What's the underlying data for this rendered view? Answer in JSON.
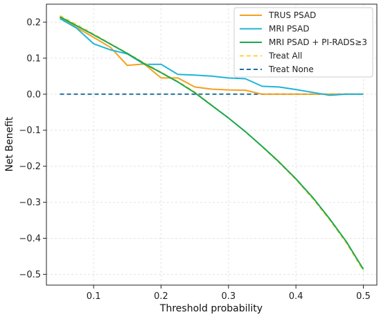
{
  "chart_data": {
    "type": "line",
    "title": "",
    "xlabel": "Threshold probability",
    "ylabel": "Net Benefit",
    "xlim": [
      0.03,
      0.52
    ],
    "ylim": [
      -0.53,
      0.25
    ],
    "xticks": [
      0.1,
      0.2,
      0.3,
      0.4,
      0.5
    ],
    "xtick_labels": [
      "0.1",
      "0.2",
      "0.3",
      "0.4",
      "0.5"
    ],
    "yticks": [
      0.2,
      0.1,
      0.0,
      -0.1,
      -0.2,
      -0.3,
      -0.4,
      -0.5
    ],
    "ytick_labels": [
      "0.2",
      "0.1",
      "0.0",
      "−0.1",
      "−0.2",
      "−0.3",
      "−0.4",
      "−0.5"
    ],
    "grid": true,
    "legend_position": "top-right",
    "series": [
      {
        "name": "TRUS PSAD",
        "color": "#f5a01e",
        "dash": "solid",
        "x": [
          0.05,
          0.075,
          0.1,
          0.125,
          0.15,
          0.175,
          0.2,
          0.225,
          0.25,
          0.275,
          0.3,
          0.325,
          0.35,
          0.375,
          0.4,
          0.425,
          0.45,
          0.475,
          0.5
        ],
        "y": [
          0.213,
          0.185,
          0.158,
          0.13,
          0.08,
          0.084,
          0.045,
          0.045,
          0.02,
          0.014,
          0.012,
          0.011,
          0.0,
          0.0,
          0.0,
          0.0,
          0.0,
          0.0,
          0.0
        ]
      },
      {
        "name": "MRI PSAD",
        "color": "#1eb4d6",
        "dash": "solid",
        "x": [
          0.05,
          0.075,
          0.1,
          0.125,
          0.15,
          0.175,
          0.2,
          0.225,
          0.25,
          0.275,
          0.3,
          0.325,
          0.35,
          0.375,
          0.4,
          0.425,
          0.45,
          0.475,
          0.5
        ],
        "y": [
          0.21,
          0.183,
          0.14,
          0.123,
          0.112,
          0.083,
          0.083,
          0.055,
          0.053,
          0.05,
          0.045,
          0.043,
          0.022,
          0.02,
          0.013,
          0.005,
          -0.003,
          0.0,
          0.0
        ]
      },
      {
        "name": "MRI PSAD + PI-RADS≥3",
        "color": "#17a84f",
        "dash": "solid",
        "x": [
          0.05,
          0.075,
          0.1,
          0.125,
          0.15,
          0.175,
          0.2,
          0.225,
          0.25,
          0.275,
          0.3,
          0.325,
          0.35,
          0.375,
          0.4,
          0.425,
          0.45,
          0.475,
          0.5
        ],
        "y": [
          0.215,
          0.19,
          0.165,
          0.139,
          0.113,
          0.085,
          0.06,
          0.034,
          0.004,
          -0.031,
          -0.066,
          -0.104,
          -0.145,
          -0.188,
          -0.235,
          -0.287,
          -0.346,
          -0.41,
          -0.486
        ]
      },
      {
        "name": "Treat All",
        "color": "#ffd23c",
        "dash": "dashed",
        "x": [
          0.05,
          0.075,
          0.1,
          0.125,
          0.15,
          0.175,
          0.2,
          0.225,
          0.25,
          0.275,
          0.3,
          0.325,
          0.35,
          0.375,
          0.4,
          0.425,
          0.45,
          0.475,
          0.5
        ],
        "y": [
          0.218,
          0.193,
          0.167,
          0.14,
          0.114,
          0.087,
          0.061,
          0.035,
          0.006,
          -0.03,
          -0.066,
          -0.104,
          -0.146,
          -0.19,
          -0.237,
          -0.29,
          -0.349,
          -0.414,
          -0.49
        ]
      },
      {
        "name": "Treat None",
        "color": "#1f6e9c",
        "dash": "dashed",
        "x": [
          0.05,
          0.5
        ],
        "y": [
          0.0,
          0.0
        ]
      }
    ]
  }
}
